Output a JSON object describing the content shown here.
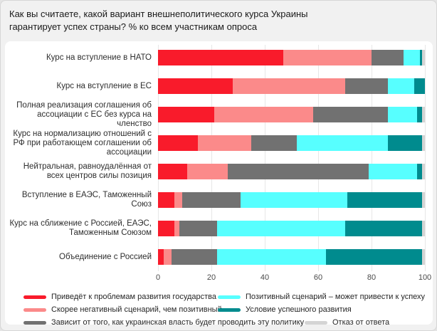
{
  "title": "Как вы считаете, какой вариант внешнеполитического курса Украины гарантирует успех страны? % ко всем участникам опроса",
  "chart_data": {
    "type": "bar",
    "orientation": "horizontal-stacked",
    "title": "Как вы считаете, какой вариант внешнеполитического курса Украины гарантирует успех страны? % ко всем участникам опроса",
    "xlabel": "",
    "ylabel": "",
    "xlim": [
      0,
      100
    ],
    "x_ticks": [
      0,
      20,
      40,
      60,
      80,
      100
    ],
    "grid": true,
    "legend_position": "bottom",
    "categories": [
      "Курс на вступление в НАТО",
      "Курс на вступление в ЕС",
      "Полная реализация соглашения об ассоциации с ЕС без курса на членство",
      "Курс на нормализацию отношений с РФ при работающем соглашении об ассоциации",
      "Нейтральная, равноудалённая от всех центров силы позиция",
      "Вступление в ЕАЭС, Таможенный Союз",
      "Курс на сближение с Россией, ЕАЭС, Таможенным Союзом",
      "Объединение с Россией"
    ],
    "series": [
      {
        "name": "Приведёт к проблемам развития государства",
        "color": "#f91b2b",
        "values": [
          47,
          28,
          21,
          15,
          11,
          6,
          6,
          2
        ]
      },
      {
        "name": "Скорее негативный сценарий, чем позитивный",
        "color": "#fb8a8a",
        "values": [
          33,
          42,
          37,
          20,
          15,
          3,
          2,
          3
        ]
      },
      {
        "name": "Зависит от того, как украинская власть будет проводить эту политику",
        "color": "#717171",
        "values": [
          12,
          16,
          28,
          17,
          53,
          22,
          14,
          17
        ]
      },
      {
        "name": "Позитивный сценарий – может привести к успеху",
        "color": "#57ffff",
        "values": [
          6,
          10,
          11,
          34,
          18,
          40,
          48,
          41
        ]
      },
      {
        "name": "Условие успешного развития",
        "color": "#008b8e",
        "values": [
          1,
          4,
          2,
          13,
          2,
          28,
          29,
          36
        ]
      },
      {
        "name": "Отказ от ответа",
        "color": "#d4d4d4",
        "values": [
          1,
          0,
          1,
          1,
          1,
          1,
          1,
          1
        ]
      }
    ]
  },
  "colors": {
    "background": "#f1f1f1",
    "card": "#ffffff",
    "gridline": "#e7e7e7",
    "negative": "#f91b2b",
    "rather_negative": "#fb8a8a",
    "depends_on_authorities": "#717171",
    "positive": "#57ffff",
    "success_condition": "#008b8e",
    "refused": "#d4d4d4"
  }
}
